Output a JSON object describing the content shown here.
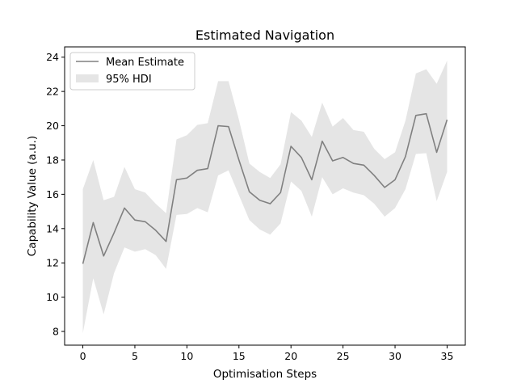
{
  "chart_data": {
    "type": "line",
    "title": "Estimated Navigation",
    "xlabel": "Optimisation Steps",
    "ylabel": "Capability Value (a.u.)",
    "xlim": [
      -1.75,
      36.75
    ],
    "ylim": [
      7.2,
      24.6
    ],
    "xticks": [
      0,
      5,
      10,
      15,
      20,
      25,
      30,
      35
    ],
    "yticks": [
      8,
      10,
      12,
      14,
      16,
      18,
      20,
      22,
      24
    ],
    "grid": false,
    "legend_position": "top-left",
    "x": [
      0,
      1,
      2,
      3,
      4,
      5,
      6,
      7,
      8,
      9,
      10,
      11,
      12,
      13,
      14,
      15,
      16,
      17,
      18,
      19,
      20,
      21,
      22,
      23,
      24,
      25,
      26,
      27,
      28,
      29,
      30,
      31,
      32,
      33,
      34,
      35
    ],
    "series": [
      {
        "name": "Mean Estimate",
        "color": "#808080",
        "values": [
          11.95,
          14.35,
          12.4,
          13.75,
          15.2,
          14.5,
          14.4,
          13.9,
          13.25,
          16.85,
          16.95,
          17.4,
          17.5,
          20.0,
          19.95,
          18.0,
          16.15,
          15.65,
          15.45,
          16.1,
          18.8,
          18.15,
          16.85,
          19.1,
          17.95,
          18.15,
          17.8,
          17.7,
          17.1,
          16.4,
          16.85,
          18.2,
          20.6,
          20.7,
          18.45,
          20.35
        ]
      },
      {
        "name": "95% HDI",
        "color": "#e5e5e5",
        "lower": [
          7.9,
          11.1,
          9.0,
          11.4,
          12.9,
          12.65,
          12.8,
          12.45,
          11.65,
          14.8,
          14.85,
          15.2,
          14.95,
          17.1,
          17.4,
          15.95,
          14.5,
          13.95,
          13.65,
          14.3,
          16.75,
          16.2,
          14.7,
          17.0,
          16.0,
          16.35,
          16.1,
          15.95,
          15.45,
          14.7,
          15.2,
          16.3,
          18.35,
          18.4,
          15.6,
          17.3
        ],
        "upper": [
          16.3,
          18.0,
          15.65,
          15.85,
          17.6,
          16.3,
          16.1,
          15.45,
          14.9,
          19.2,
          19.45,
          20.05,
          20.15,
          22.6,
          22.6,
          20.35,
          17.8,
          17.3,
          16.95,
          17.75,
          20.8,
          20.3,
          19.35,
          21.35,
          19.95,
          20.45,
          19.75,
          19.65,
          18.65,
          18.05,
          18.45,
          20.3,
          23.05,
          23.3,
          22.45,
          23.8
        ]
      }
    ]
  }
}
